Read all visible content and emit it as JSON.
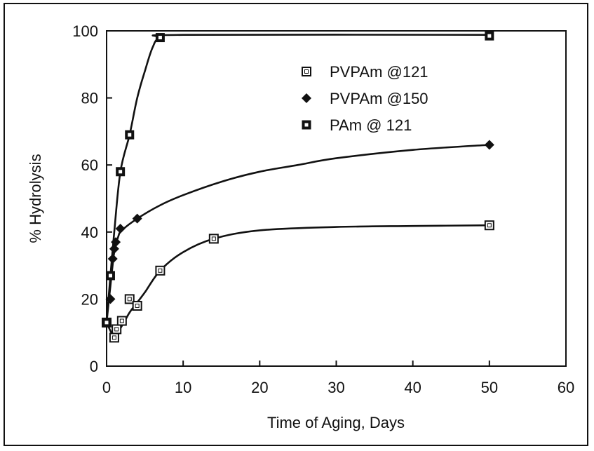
{
  "chart_data": {
    "type": "scatter",
    "title": "",
    "xlabel": "Time of Aging, Days",
    "ylabel": "% Hydrolysis",
    "xlim": [
      0,
      60
    ],
    "ylim": [
      0,
      100
    ],
    "x_ticks": [
      0,
      10,
      20,
      30,
      40,
      50,
      60
    ],
    "y_ticks": [
      0,
      20,
      40,
      60,
      80,
      100
    ],
    "grid": false,
    "legend_position": "top-right",
    "series": [
      {
        "name": "PVPAm @121",
        "marker": "open-square",
        "points": [
          [
            0,
            13
          ],
          [
            1,
            8.5
          ],
          [
            1.3,
            11
          ],
          [
            2,
            13.5
          ],
          [
            3,
            20
          ],
          [
            4,
            18
          ],
          [
            7,
            28.5
          ],
          [
            14,
            38
          ],
          [
            50,
            42
          ]
        ],
        "curve": [
          [
            0,
            13
          ],
          [
            1,
            9
          ],
          [
            2,
            12
          ],
          [
            3,
            16
          ],
          [
            4,
            19
          ],
          [
            5,
            22
          ],
          [
            7,
            28.5
          ],
          [
            10,
            34
          ],
          [
            14,
            38
          ],
          [
            20,
            40.5
          ],
          [
            30,
            41.5
          ],
          [
            40,
            41.8
          ],
          [
            50,
            42
          ]
        ]
      },
      {
        "name": "PVPAm @150",
        "marker": "filled-diamond",
        "points": [
          [
            0,
            13
          ],
          [
            0.5,
            20
          ],
          [
            0.8,
            32
          ],
          [
            1,
            35
          ],
          [
            1.2,
            37
          ],
          [
            1.8,
            41
          ],
          [
            4,
            44
          ],
          [
            50,
            66
          ]
        ],
        "curve": [
          [
            0,
            13
          ],
          [
            0.5,
            24
          ],
          [
            1,
            34
          ],
          [
            1.5,
            38.5
          ],
          [
            2,
            40.5
          ],
          [
            4,
            44
          ],
          [
            7,
            48
          ],
          [
            10,
            51
          ],
          [
            15,
            55
          ],
          [
            20,
            58
          ],
          [
            25,
            60
          ],
          [
            30,
            62
          ],
          [
            40,
            64.5
          ],
          [
            50,
            66
          ]
        ]
      },
      {
        "name": "PAm @ 121",
        "marker": "square-dot",
        "points": [
          [
            0,
            13
          ],
          [
            0.5,
            27
          ],
          [
            1.8,
            58
          ],
          [
            3,
            69
          ],
          [
            7,
            98
          ],
          [
            50,
            98.5
          ]
        ],
        "curve": [
          [
            0,
            13
          ],
          [
            0.5,
            27
          ],
          [
            1,
            40
          ],
          [
            1.8,
            58
          ],
          [
            3,
            69
          ],
          [
            4,
            80
          ],
          [
            5,
            88
          ],
          [
            6,
            95
          ],
          [
            7,
            98
          ],
          [
            10,
            98.8
          ],
          [
            50,
            98.8
          ]
        ]
      }
    ]
  }
}
